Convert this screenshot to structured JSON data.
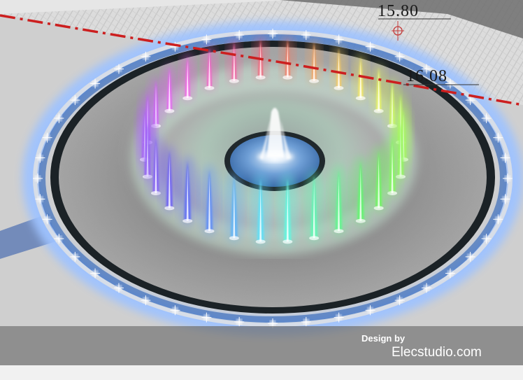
{
  "elevations": {
    "upper": "15.80",
    "lower": "16.08"
  },
  "credit": {
    "line": "Design by",
    "site": "Elecstudio.com"
  },
  "colors": {
    "boundary_line": "#cc1f1f",
    "pool_rim": "#1b2226",
    "glow": "#9fc3ff",
    "paving": "#d7d7d7",
    "pool_floor": "#8f8f8f",
    "footer_band": "#6e6e6e"
  },
  "jets": {
    "inner_ring_count": 30,
    "center_fountain": true
  }
}
